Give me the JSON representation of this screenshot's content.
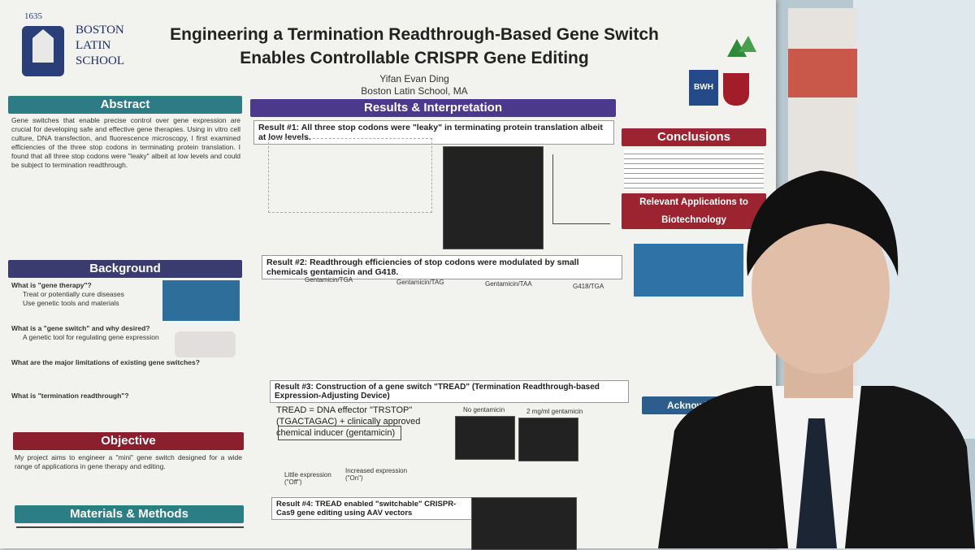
{
  "poster": {
    "logo": {
      "year": "1635",
      "name": "BOSTON LATIN SCHOOL"
    },
    "title": "Engineering a Termination Readthrough-Based Gene Switch Enables Controllable CRISPR Gene Editing",
    "author": "Yifan Evan Ding",
    "affiliation": "Boston Latin School, MA",
    "partner_logo": "BWH",
    "abstract": {
      "heading": "Abstract",
      "text": "Gene switches that enable precise control over gene expression are crucial for developing safe and effective gene therapies. Using in vitro cell culture, DNA transfection, and fluorescence microscopy, I first examined efficiencies of the three stop codons in terminating protein translation. I found that all three stop codons were \"leaky\" albeit at low levels and could be subject to termination readthrough."
    },
    "background": {
      "heading": "Background",
      "items": [
        "What is \"gene therapy\"?",
        "Treat or potentially cure diseases",
        "Use genetic tools and materials",
        "What is a \"gene switch\" and why desired?",
        "A genetic tool for regulating gene expression",
        "What are the major limitations of existing gene switches?",
        "What is \"termination readthrough\"?"
      ]
    },
    "objective": {
      "heading": "Objective",
      "text": "My project aims to engineer a \"mini\" gene switch designed for a wide range of applications in gene therapy and editing."
    },
    "methods": {
      "heading": "Materials & Methods"
    },
    "results": {
      "heading": "Results & Interpretation",
      "r1": "Result #1: All three stop codons were \"leaky\" in terminating protein translation albeit at low levels.",
      "r2": "Result #2: Readthrough efficiencies of stop codons were modulated by small chemicals gentamicin and G418.",
      "r2_charts": [
        "Gentamicin/TGA",
        "Gentamicin/TAG",
        "Gentamicin/TAA",
        "G418/TGA"
      ],
      "r3": "Result #3: Construction of a gene switch \"TREAD\" (Termination Readthrough-based Expression-Adjusting Device)",
      "r3_text": "TREAD = DNA effector \"TRSTOP\" (TGACTAGAC) + clinically approved chemical inducer (gentamicin)",
      "r3_labels": [
        "No gentamicin",
        "2 mg/ml gentamicin",
        "Little expression (\"Off\")",
        "Increased expression (\"On\")"
      ],
      "r4": "Result #4: TREAD enabled \"switchable\" CRISPR-Cas9 gene editing using AAV vectors"
    },
    "conclusions": {
      "heading": "Conclusions"
    },
    "applications": {
      "heading": "Relevant Applications to Biotechnology"
    },
    "acknowledgements": {
      "heading": "Acknowledgem"
    }
  }
}
